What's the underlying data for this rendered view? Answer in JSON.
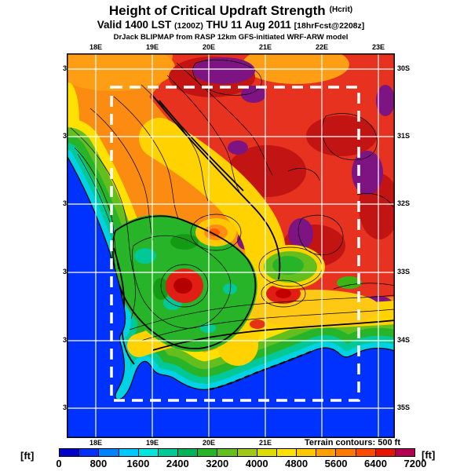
{
  "header": {
    "title": "Height of Critical Updraft Strength",
    "title_unit": "(Hcrit)",
    "valid_prefix": "Valid 1400 LST",
    "valid_z": "(1200Z)",
    "valid_date": "THU 11 Aug 2011",
    "valid_fcst": "[18hrFcst@2208z]",
    "model": "DrJack BLIPMAP from RASP 12km GFS-initiated WRF-ARW model"
  },
  "map": {
    "lon_labels": [
      "18E",
      "19E",
      "20E",
      "21E",
      "22E",
      "23E"
    ],
    "lon_labels_bottom": [
      "18E",
      "19E",
      "20E",
      "21E"
    ],
    "lat_labels": [
      "30S",
      "31S",
      "32S",
      "33S",
      "34S",
      "35S"
    ],
    "terrain_note": "Terrain contours: 500 ft",
    "ocean_color": "#0032ff",
    "over_scale_color": "#7d1482",
    "domain_box": "white dashed inner model domain"
  },
  "colorbar": {
    "unit_left": "[ft]",
    "unit_right": "[ft]",
    "min": 0,
    "max": 7200,
    "segment_step": 400,
    "tick_labels": [
      "0",
      "800",
      "1600",
      "2400",
      "3200",
      "4000",
      "4800",
      "5600",
      "6400",
      "7200"
    ],
    "colors": [
      "#0000c8",
      "#0032ff",
      "#0082ff",
      "#00c8ff",
      "#00e6dc",
      "#00c896",
      "#00b45a",
      "#28b428",
      "#64be1e",
      "#a0c814",
      "#dcdc00",
      "#ffe100",
      "#ffc800",
      "#ffa000",
      "#ff7800",
      "#ff4b00",
      "#e61400",
      "#b40050"
    ]
  }
}
